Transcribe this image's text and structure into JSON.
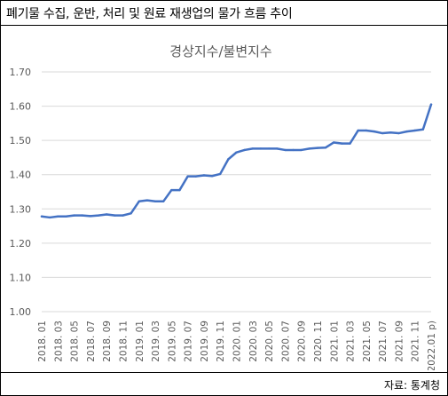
{
  "header": {
    "title": "폐기물 수집, 운반, 처리 및 원료 재생업의 물가 흐름 추이"
  },
  "footer": {
    "source": "자료: 통계청"
  },
  "colors": {
    "line": "#4472C4",
    "grid": "#D9D9D9",
    "text": "#595959"
  },
  "chart_data": {
    "type": "line",
    "title": "경상지수/불변지수",
    "xlabel": "",
    "ylabel": "",
    "ylim": [
      1.0,
      1.7
    ],
    "yticks": [
      "1.00",
      "1.10",
      "1.20",
      "1.30",
      "1.40",
      "1.50",
      "1.60",
      "1.70"
    ],
    "grid": true,
    "legend": "none",
    "x_tick_labels": [
      "2018. 01",
      "2018. 03",
      "2018. 05",
      "2018. 07",
      "2018. 09",
      "2018. 11",
      "2019. 01",
      "2019. 03",
      "2019. 05",
      "2019. 07",
      "2019. 09",
      "2019. 11",
      "2020. 01",
      "2020. 03",
      "2020. 05",
      "2020. 07",
      "2020. 09",
      "2020. 11",
      "2021. 01",
      "2021. 03",
      "2021. 05",
      "2021. 07",
      "2021. 09",
      "2021. 11",
      "2022.01 p)"
    ],
    "x": [
      "2018.01",
      "2018.02",
      "2018.03",
      "2018.04",
      "2018.05",
      "2018.06",
      "2018.07",
      "2018.08",
      "2018.09",
      "2018.10",
      "2018.11",
      "2018.12",
      "2019.01",
      "2019.02",
      "2019.03",
      "2019.04",
      "2019.05",
      "2019.06",
      "2019.07",
      "2019.08",
      "2019.09",
      "2019.10",
      "2019.11",
      "2019.12",
      "2020.01",
      "2020.02",
      "2020.03",
      "2020.04",
      "2020.05",
      "2020.06",
      "2020.07",
      "2020.08",
      "2020.09",
      "2020.10",
      "2020.11",
      "2020.12",
      "2021.01",
      "2021.02",
      "2021.03",
      "2021.04",
      "2021.05",
      "2021.06",
      "2021.07",
      "2021.08",
      "2021.09",
      "2021.10",
      "2021.11",
      "2021.12",
      "2022.01"
    ],
    "values": [
      1.278,
      1.275,
      1.278,
      1.278,
      1.281,
      1.281,
      1.279,
      1.281,
      1.284,
      1.281,
      1.281,
      1.287,
      1.322,
      1.325,
      1.322,
      1.322,
      1.355,
      1.355,
      1.395,
      1.395,
      1.398,
      1.396,
      1.402,
      1.445,
      1.465,
      1.472,
      1.476,
      1.476,
      1.476,
      1.476,
      1.472,
      1.472,
      1.472,
      1.476,
      1.478,
      1.479,
      1.494,
      1.491,
      1.491,
      1.529,
      1.529,
      1.526,
      1.521,
      1.523,
      1.521,
      1.526,
      1.529,
      1.532,
      1.605
    ]
  }
}
